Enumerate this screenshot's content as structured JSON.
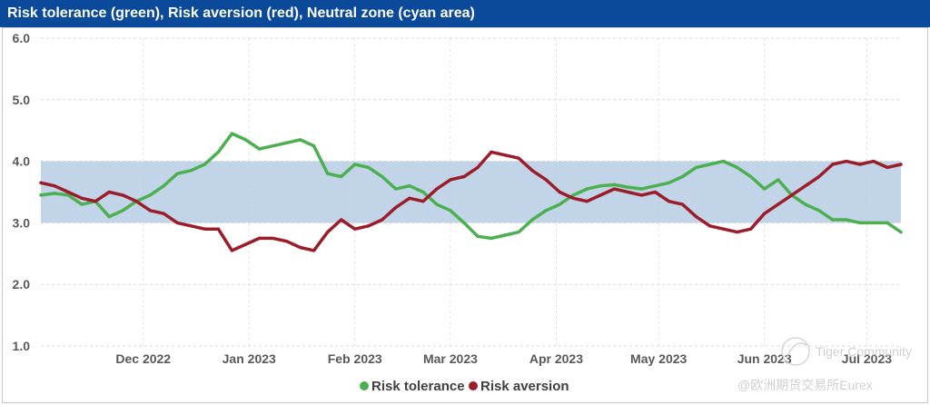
{
  "chart_data": {
    "type": "line",
    "title": "Risk tolerance (green), Risk aversion (red), Neutral zone (cyan area)",
    "ylim": [
      1.0,
      6.0
    ],
    "y_ticks": [
      "1.0",
      "2.0",
      "3.0",
      "4.0",
      "5.0",
      "6.0"
    ],
    "x_ticks": [
      "Dec 2022",
      "Jan 2023",
      "Feb 2023",
      "Mar 2023",
      "Apr 2023",
      "May 2023",
      "Jun 2023",
      "Jul 2023"
    ],
    "x_range_days": [
      0,
      252
    ],
    "x_tick_days": [
      30,
      61,
      92,
      120,
      151,
      181,
      212,
      242
    ],
    "neutral_zone": [
      3.0,
      4.0
    ],
    "grid": true,
    "series": [
      {
        "name": "Risk tolerance",
        "color": "#4caf50",
        "x": [
          0,
          4,
          8,
          12,
          16,
          20,
          24,
          28,
          32,
          36,
          40,
          44,
          48,
          52,
          56,
          60,
          64,
          68,
          72,
          76,
          80,
          84,
          88,
          92,
          96,
          100,
          104,
          108,
          112,
          116,
          120,
          124,
          128,
          132,
          136,
          140,
          144,
          148,
          152,
          156,
          160,
          164,
          168,
          172,
          176,
          180,
          184,
          188,
          192,
          196,
          200,
          204,
          208,
          212,
          216,
          220,
          224,
          228,
          232,
          236,
          240,
          244,
          248,
          252
        ],
        "values": [
          3.45,
          3.48,
          3.45,
          3.3,
          3.35,
          3.1,
          3.2,
          3.35,
          3.45,
          3.6,
          3.8,
          3.85,
          3.95,
          4.15,
          4.45,
          4.35,
          4.2,
          4.25,
          4.3,
          4.35,
          4.25,
          3.8,
          3.75,
          3.95,
          3.9,
          3.75,
          3.55,
          3.6,
          3.5,
          3.3,
          3.2,
          3.0,
          2.78,
          2.75,
          2.8,
          2.85,
          3.05,
          3.2,
          3.3,
          3.45,
          3.55,
          3.6,
          3.62,
          3.58,
          3.55,
          3.6,
          3.65,
          3.75,
          3.9,
          3.95,
          4.0,
          3.9,
          3.75,
          3.55,
          3.7,
          3.45,
          3.3,
          3.2,
          3.05,
          3.05,
          3.0,
          3.0,
          3.0,
          2.85
        ]
      },
      {
        "name": "Risk aversion",
        "color": "#9b1d2a",
        "x": [
          0,
          4,
          8,
          12,
          16,
          20,
          24,
          28,
          32,
          36,
          40,
          44,
          48,
          52,
          56,
          60,
          64,
          68,
          72,
          76,
          80,
          84,
          88,
          92,
          96,
          100,
          104,
          108,
          112,
          116,
          120,
          124,
          128,
          132,
          136,
          140,
          144,
          148,
          152,
          156,
          160,
          164,
          168,
          172,
          176,
          180,
          184,
          188,
          192,
          196,
          200,
          204,
          208,
          212,
          216,
          220,
          224,
          228,
          232,
          236,
          240,
          244,
          248,
          252
        ],
        "values": [
          3.65,
          3.6,
          3.5,
          3.4,
          3.35,
          3.5,
          3.45,
          3.35,
          3.2,
          3.15,
          3.0,
          2.95,
          2.9,
          2.9,
          2.55,
          2.65,
          2.75,
          2.75,
          2.7,
          2.6,
          2.55,
          2.85,
          3.05,
          2.9,
          2.95,
          3.05,
          3.25,
          3.4,
          3.35,
          3.55,
          3.7,
          3.75,
          3.9,
          4.15,
          4.1,
          4.05,
          3.85,
          3.7,
          3.5,
          3.4,
          3.35,
          3.45,
          3.55,
          3.5,
          3.45,
          3.5,
          3.35,
          3.3,
          3.1,
          2.95,
          2.9,
          2.85,
          2.9,
          3.15,
          3.3,
          3.45,
          3.6,
          3.75,
          3.95,
          4.0,
          3.95,
          4.0,
          3.9,
          3.95
        ]
      }
    ]
  },
  "watermark": {
    "line1": "Tiger Community",
    "line2": "@欧洲期货交易所Eurex"
  }
}
